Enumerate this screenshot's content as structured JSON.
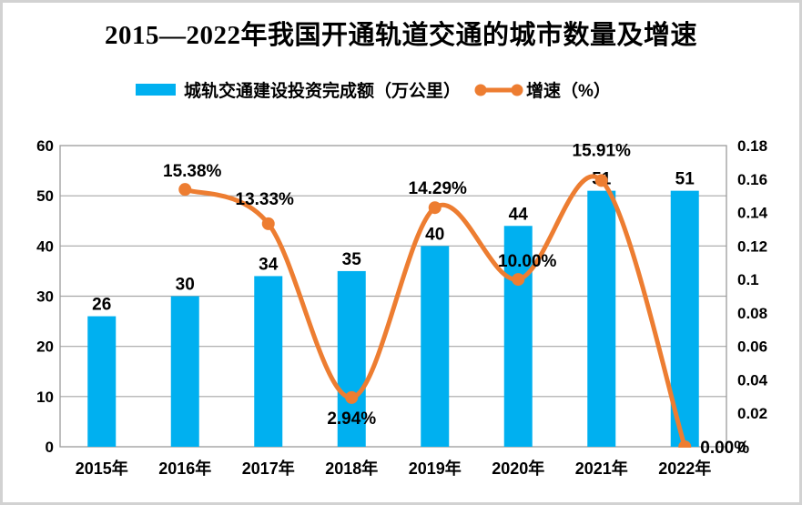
{
  "title": "2015—2022年我国开通轨道交通的城市数量及增速",
  "legend": {
    "bar_label": "城轨交通建设投资完成额（万公里）",
    "line_label": "增速（%）"
  },
  "colors": {
    "bar": "#00B0F0",
    "line": "#ED7D31",
    "grid": "#A6A6A6",
    "plot_border": "#9B9B9B",
    "text": "#000000"
  },
  "chart_data": {
    "type": "bar+line",
    "title": "2015—2022年我国开通轨道交通的城市数量及增速",
    "categories": [
      "2015年",
      "2016年",
      "2017年",
      "2018年",
      "2019年",
      "2020年",
      "2021年",
      "2022年"
    ],
    "series": [
      {
        "name": "城轨交通建设投资完成额（万公里）",
        "type": "bar",
        "axis": "left",
        "values": [
          26,
          30,
          34,
          35,
          40,
          44,
          51,
          51
        ],
        "labels": [
          "26",
          "30",
          "34",
          "35",
          "40",
          "44",
          "51",
          "51"
        ]
      },
      {
        "name": "增速（%）",
        "type": "line",
        "axis": "right",
        "smooth": true,
        "values": [
          null,
          0.1538,
          0.1333,
          0.0294,
          0.1429,
          0.1,
          0.1591,
          0.0
        ],
        "labels": [
          "",
          "15.38%",
          "13.33%",
          "2.94%",
          "14.29%",
          "10.00%",
          "15.91%",
          "0.00%"
        ],
        "label_offsets": [
          null,
          {
            "dx": 8,
            "dy": -14,
            "anchor": "middle"
          },
          {
            "dx": -4,
            "dy": -21,
            "anchor": "middle"
          },
          {
            "dx": 0,
            "dy": 29,
            "anchor": "middle"
          },
          {
            "dx": 3,
            "dy": -15,
            "anchor": "middle"
          },
          {
            "dx": 10,
            "dy": -14,
            "anchor": "middle"
          },
          {
            "dx": 0,
            "dy": -27,
            "anchor": "middle"
          },
          {
            "dx": 17,
            "dy": 7,
            "anchor": "start"
          }
        ]
      }
    ],
    "left_axis": {
      "min": 0,
      "max": 60,
      "step": 10,
      "ticks": [
        "60",
        "50",
        "40",
        "30",
        "20",
        "10",
        "0"
      ]
    },
    "right_axis": {
      "min": 0,
      "max": 0.18,
      "step": 0.02,
      "ticks": [
        "0.18",
        "0.16",
        "0.14",
        "0.12",
        "0.1",
        "0.08",
        "0.06",
        "0.04",
        "0.02",
        "0"
      ]
    },
    "grid": true,
    "legend_position": "top"
  }
}
